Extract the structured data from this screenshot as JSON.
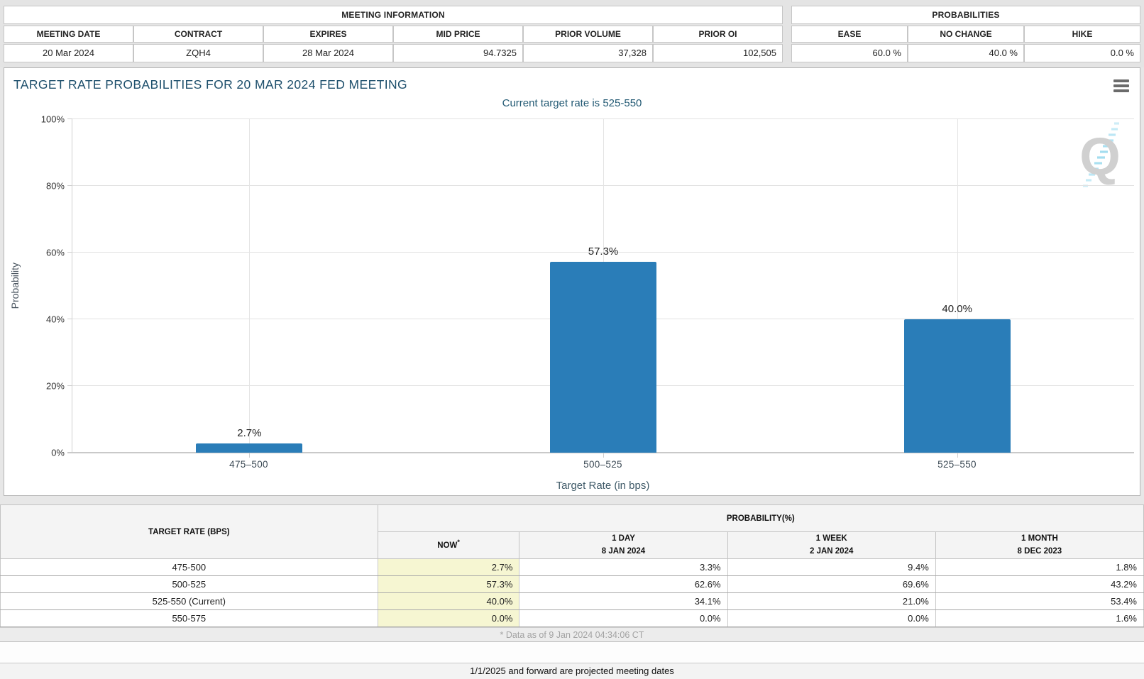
{
  "meeting_info": {
    "title": "MEETING INFORMATION",
    "columns": [
      "MEETING DATE",
      "CONTRACT",
      "EXPIRES",
      "MID PRICE",
      "PRIOR VOLUME",
      "PRIOR OI"
    ],
    "values": [
      "20 Mar 2024",
      "ZQH4",
      "28 Mar 2024",
      "94.7325",
      "37,328",
      "102,505"
    ],
    "align": [
      "center",
      "center",
      "center",
      "right",
      "right",
      "right"
    ]
  },
  "probabilities": {
    "title": "PROBABILITIES",
    "columns": [
      "EASE",
      "NO CHANGE",
      "HIKE"
    ],
    "values": [
      "60.0 %",
      "40.0 %",
      "0.0 %"
    ],
    "align": [
      "right",
      "right",
      "right"
    ]
  },
  "chart": {
    "title": "TARGET RATE PROBABILITIES FOR 20 MAR 2024 FED MEETING",
    "subtitle": "Current target rate is 525-550",
    "menu_icon": "hamburger-menu-icon",
    "watermark_letter": "Q"
  },
  "chart_data": {
    "type": "bar",
    "title": "TARGET RATE PROBABILITIES FOR 20 MAR 2024 FED MEETING",
    "subtitle": "Current target rate is 525-550",
    "categories": [
      "475–500",
      "500–525",
      "525–550"
    ],
    "values": [
      2.7,
      57.3,
      40.0
    ],
    "labels": [
      "2.7%",
      "57.3%",
      "40.0%"
    ],
    "xlabel": "Target Rate (in bps)",
    "ylabel": "Probability",
    "ylim": [
      0,
      100
    ],
    "yticks": [
      "0%",
      "20%",
      "40%",
      "60%",
      "80%",
      "100%"
    ],
    "grid": true,
    "legend_position": "none"
  },
  "history_table": {
    "col1_header": "TARGET RATE (BPS)",
    "group_header": "PROBABILITY(%)",
    "sub_headers": [
      {
        "line1": "NOW",
        "sup": "*",
        "line2": ""
      },
      {
        "line1": "1 DAY",
        "sup": "",
        "line2": "8 JAN 2024"
      },
      {
        "line1": "1 WEEK",
        "sup": "",
        "line2": "2 JAN 2024"
      },
      {
        "line1": "1 MONTH",
        "sup": "",
        "line2": "8 DEC 2023"
      }
    ],
    "rows": [
      {
        "rate": "475-500",
        "values": [
          "2.7%",
          "3.3%",
          "9.4%",
          "1.8%"
        ]
      },
      {
        "rate": "500-525",
        "values": [
          "57.3%",
          "62.6%",
          "69.6%",
          "43.2%"
        ]
      },
      {
        "rate": "525-550 (Current)",
        "values": [
          "40.0%",
          "34.1%",
          "21.0%",
          "53.4%"
        ]
      },
      {
        "rate": "550-575",
        "values": [
          "0.0%",
          "0.0%",
          "0.0%",
          "1.6%"
        ]
      }
    ],
    "footnote": "* Data as of 9 Jan 2024 04:34:06 CT"
  },
  "footer_note": "1/1/2025 and forward are projected meeting dates",
  "colors": {
    "bar": "#2a7db8",
    "title_text": "#1c4e6b",
    "now_column_bg": "#f6f6d2",
    "watermark_gray": "#cccccc",
    "watermark_blue": "#a8ddf0"
  }
}
